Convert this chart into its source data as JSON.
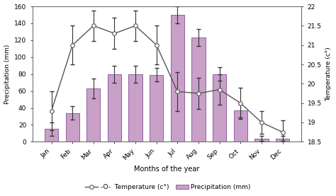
{
  "months": [
    "Jan",
    "Feb",
    "Mar",
    "Apr",
    "May",
    "Jun",
    "Jul",
    "Aug",
    "Sep",
    "Oct",
    "Nov",
    "Dec"
  ],
  "precipitation": [
    15,
    34,
    63,
    80,
    80,
    79,
    150,
    123,
    80,
    37,
    4,
    4
  ],
  "precip_err": [
    8,
    8,
    12,
    10,
    10,
    8,
    10,
    10,
    8,
    8,
    3,
    3
  ],
  "temperature": [
    19.3,
    21.0,
    21.5,
    21.3,
    21.5,
    21.0,
    19.8,
    19.75,
    19.85,
    19.5,
    19.0,
    18.75
  ],
  "temp_err": [
    0.5,
    0.5,
    0.4,
    0.4,
    0.4,
    0.5,
    0.5,
    0.4,
    0.4,
    0.4,
    0.3,
    0.3
  ],
  "bar_color": "#c8a0c8",
  "bar_edge_color": "#9060a0",
  "line_color": "#555555",
  "marker_face": "#ffffff",
  "marker_edge": "#555555",
  "ylabel_left": "Precipitation (mm)",
  "ylabel_right": "Temperature (c°)",
  "xlabel": "Months of the year",
  "ylim_left": [
    0,
    160
  ],
  "ylim_right": [
    18.5,
    22
  ],
  "yticks_left": [
    0,
    20,
    40,
    60,
    80,
    100,
    120,
    140,
    160
  ],
  "yticks_right": [
    18.5,
    19.0,
    19.5,
    20.0,
    20.5,
    21.0,
    21.5,
    22.0
  ],
  "ytick_labels_right": [
    "18.5",
    "19",
    "19.5",
    "20",
    "20.5",
    "21",
    "21.5",
    "22"
  ],
  "legend_temp": "-O-  Temperature (c°)",
  "legend_precip": "Precipitation (mm)",
  "bg_color": "#ffffff",
  "figsize": [
    4.74,
    2.77
  ],
  "dpi": 100
}
